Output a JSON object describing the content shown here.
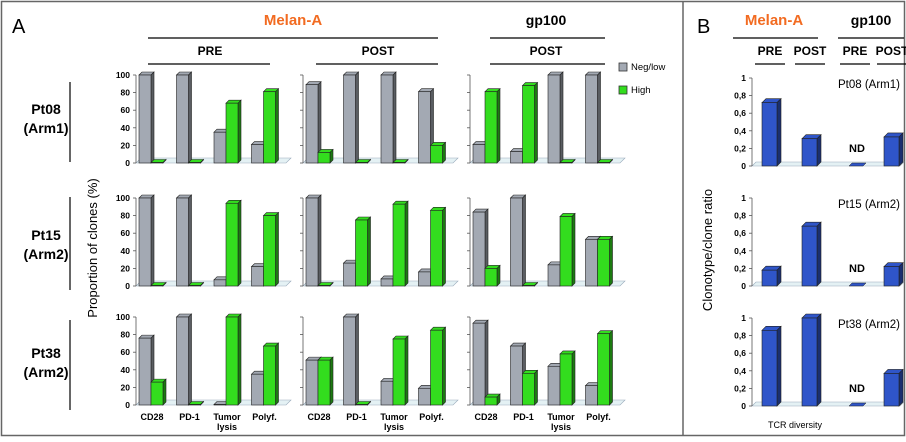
{
  "panel_a_label": "A",
  "panel_b_label": "B",
  "header_melan": "Melan-A",
  "header_gp100": "gp100",
  "pre_label": "PRE",
  "post_label": "POST",
  "y_axis_label_a": "Proportion of clones (%)",
  "y_axis_label_b": "Clonotype/clone ratio",
  "x_axis_label_b": "TCR diversity",
  "legend": {
    "neg": "Neg/low",
    "high": "High"
  },
  "colors": {
    "accent": "#f26b21",
    "gray": "#a3a9b3",
    "green": "#33dd1e",
    "blue": "#2f55c9",
    "frame": "#666666"
  },
  "patients": [
    {
      "name": "Pt08",
      "arm": "(Arm1)"
    },
    {
      "name": "Pt15",
      "arm": "(Arm2)"
    },
    {
      "name": "Pt38",
      "arm": "(Arm2)"
    }
  ],
  "b_headers": [
    "PRE",
    "POST",
    "PRE",
    "POST"
  ],
  "nd_label": "ND",
  "chart_data": [
    {
      "type": "bar",
      "panel": "A",
      "categories": [
        "CD28",
        "PD-1",
        "Tumor lysis",
        "Polyf."
      ],
      "series_names": [
        "Neg/low",
        "High"
      ],
      "ylim": [
        0,
        100
      ],
      "yticks": [
        0,
        20,
        40,
        60,
        80,
        100
      ],
      "ylabel": "Proportion of clones (%)",
      "groups": [
        "Melan-A PRE",
        "Melan-A POST",
        "gp100 POST"
      ],
      "rows": [
        {
          "patient": "Pt08 (Arm1)",
          "groups": [
            {
              "neg": [
                100,
                100,
                35,
                21
              ],
              "high": [
                0,
                0,
                68,
                81
              ]
            },
            {
              "neg": [
                89,
                100,
                100,
                81
              ],
              "high": [
                12,
                0,
                0,
                20
              ]
            },
            {
              "neg": [
                21,
                13,
                100,
                100
              ],
              "high": [
                81,
                88,
                0,
                0
              ]
            }
          ]
        },
        {
          "patient": "Pt15 (Arm2)",
          "groups": [
            {
              "neg": [
                100,
                100,
                7,
                22
              ],
              "high": [
                0,
                0,
                94,
                80
              ]
            },
            {
              "neg": [
                100,
                26,
                8,
                16
              ],
              "high": [
                0,
                75,
                93,
                86
              ]
            },
            {
              "neg": [
                84,
                100,
                24,
                53
              ],
              "high": [
                20,
                0,
                79,
                53
              ]
            }
          ]
        },
        {
          "patient": "Pt38 (Arm2)",
          "groups": [
            {
              "neg": [
                76,
                100,
                0,
                35
              ],
              "high": [
                26,
                0,
                100,
                67
              ]
            },
            {
              "neg": [
                51,
                100,
                27,
                19
              ],
              "high": [
                51,
                0,
                75,
                85
              ]
            },
            {
              "neg": [
                93,
                67,
                44,
                22
              ],
              "high": [
                9,
                36,
                58,
                81
              ]
            }
          ]
        }
      ]
    },
    {
      "type": "bar",
      "panel": "B",
      "categories": [
        "Melan-A PRE",
        "Melan-A POST",
        "gp100 PRE",
        "gp100 POST"
      ],
      "ylim": [
        0,
        1
      ],
      "yticks": [
        0,
        0.2,
        0.4,
        0.6,
        0.8,
        1
      ],
      "yticklabels": [
        "0",
        "0,2",
        "0,4",
        "0,6",
        "0,8",
        "1"
      ],
      "ylabel": "Clonotype/clone ratio",
      "xlabel": "TCR diversity",
      "rows": [
        {
          "patient": "Pt08 (Arm1)",
          "values": [
            0.72,
            0.31,
            null,
            0.33
          ]
        },
        {
          "patient": "Pt15 (Arm2)",
          "values": [
            0.18,
            0.68,
            null,
            0.22
          ]
        },
        {
          "patient": "Pt38 (Arm2)",
          "values": [
            0.86,
            1.0,
            null,
            0.37
          ]
        }
      ]
    }
  ]
}
